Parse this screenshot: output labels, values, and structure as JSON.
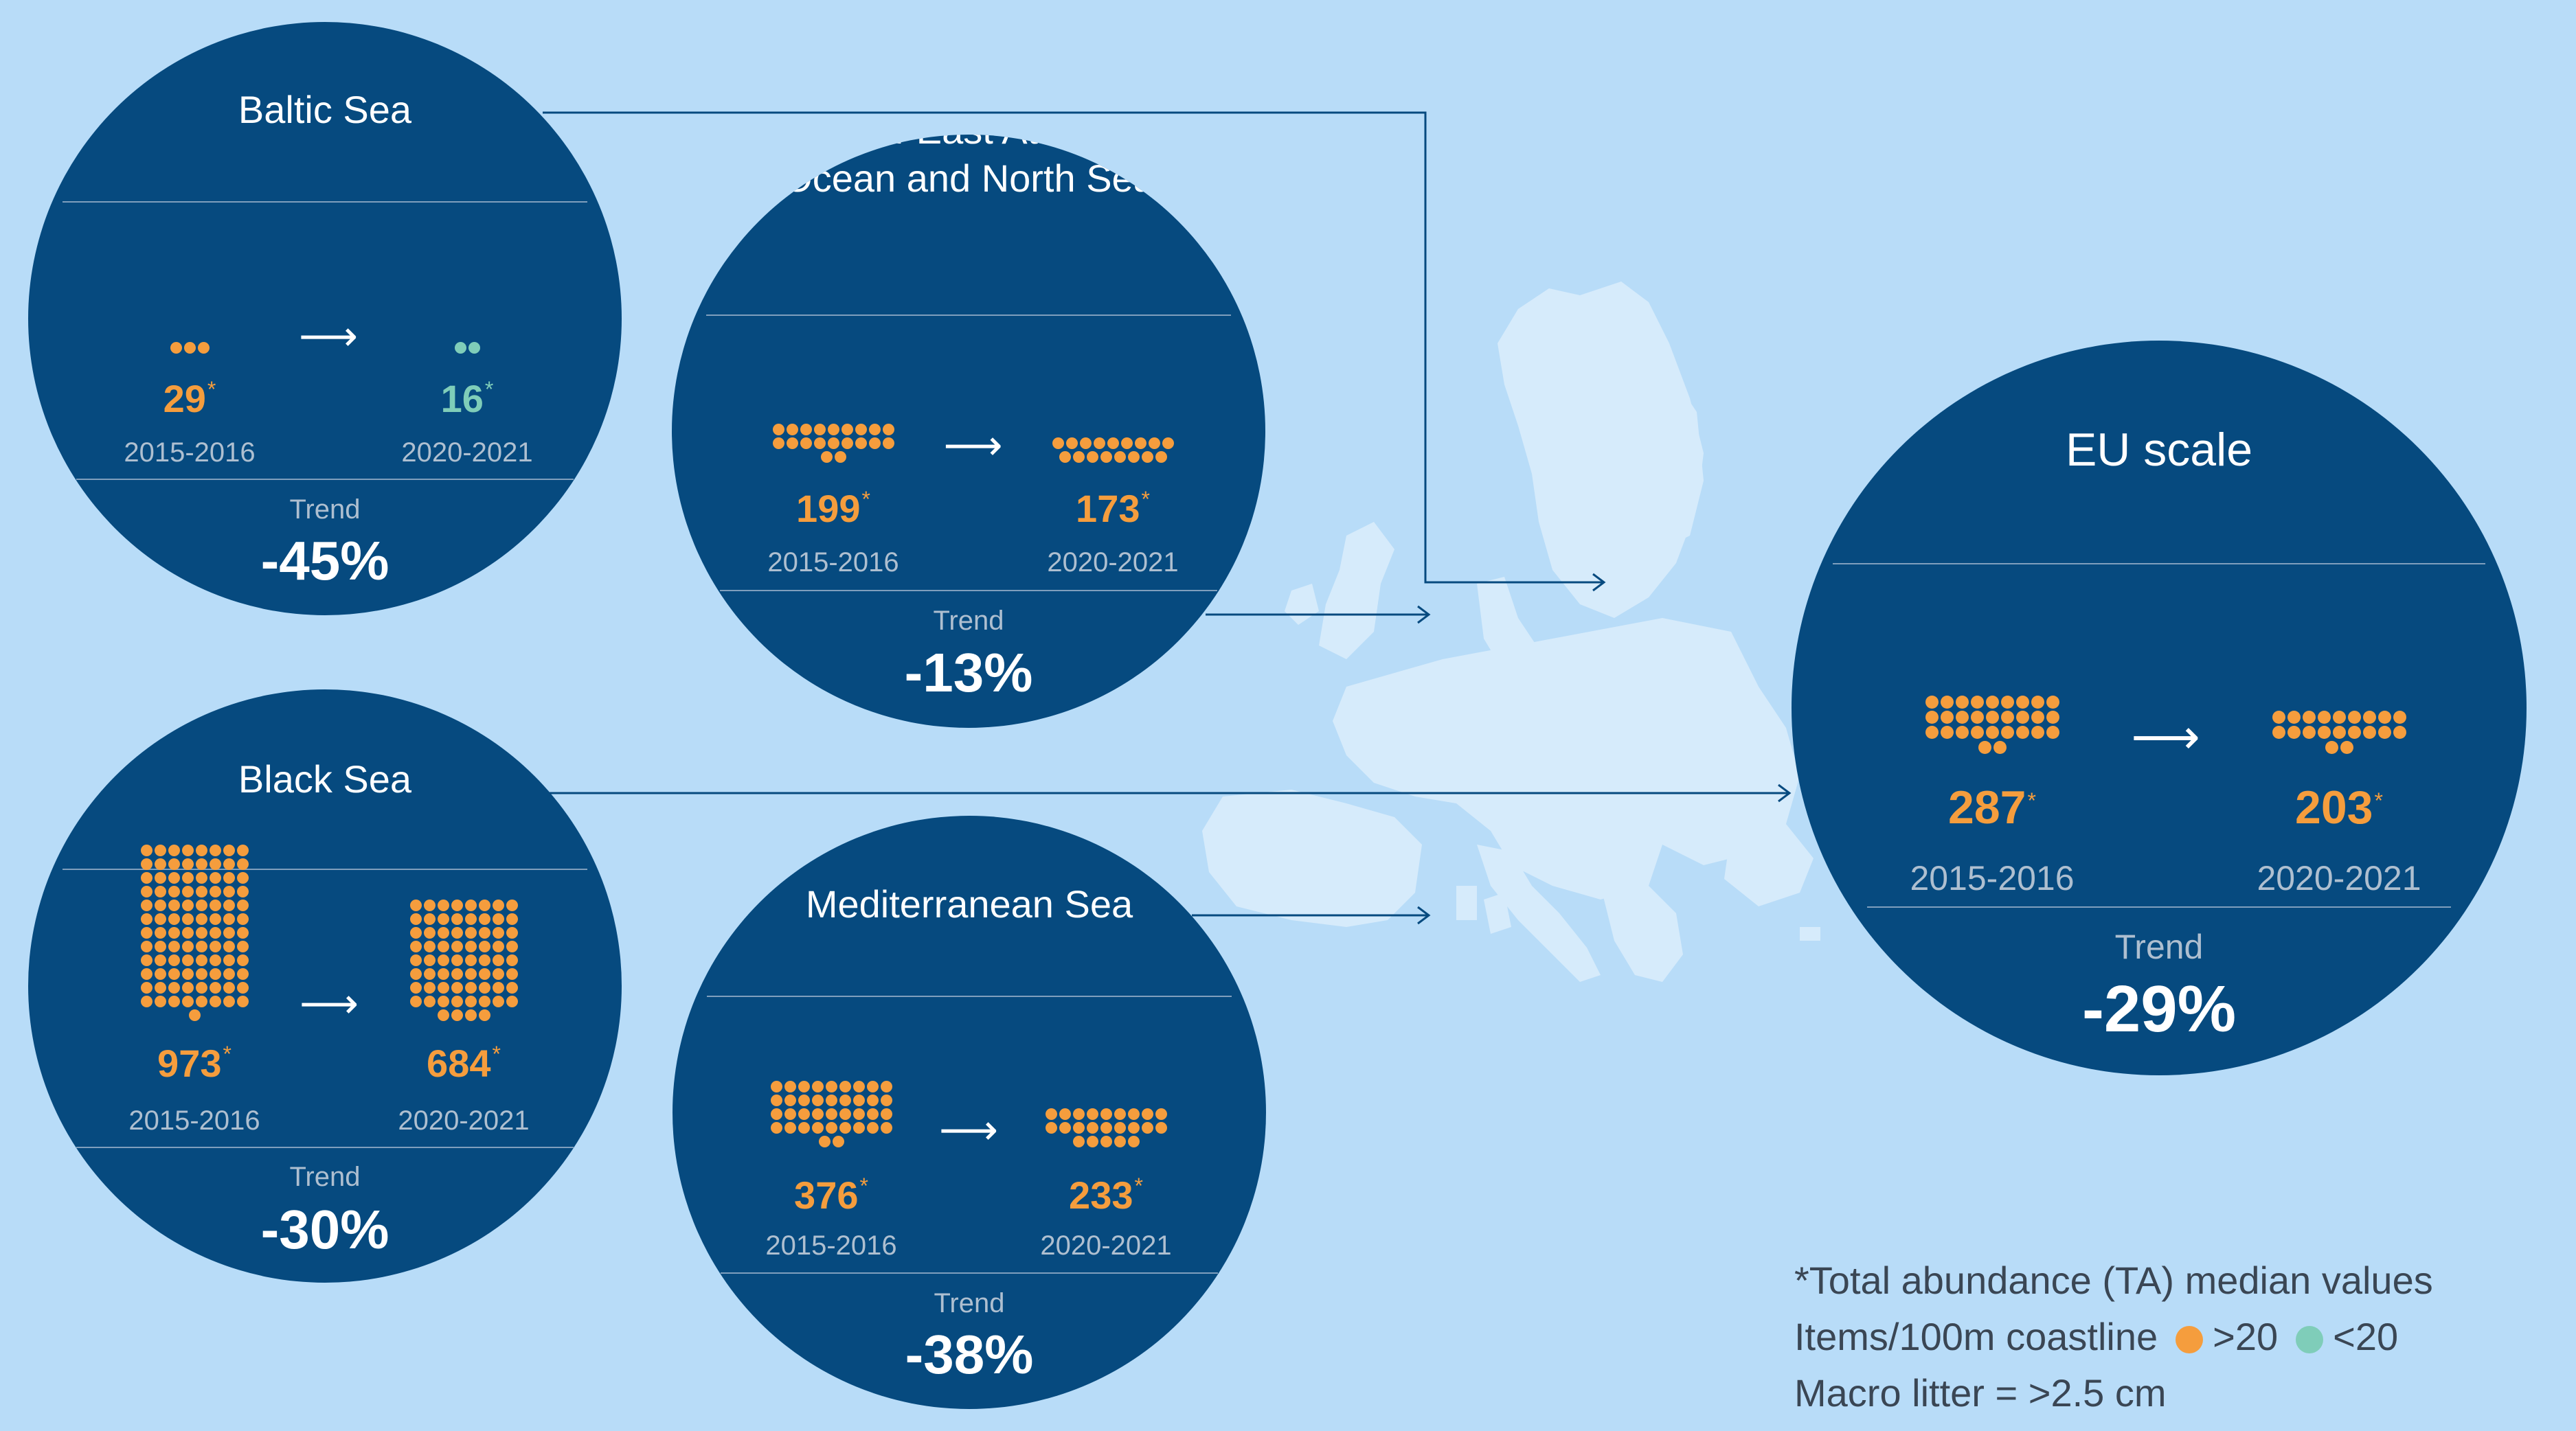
{
  "colors": {
    "background": "#b8dcf8",
    "circle": "#064a7f",
    "above_20": "#f59d3d",
    "below_20": "#7fcdb9",
    "muted_text": "#aebfd0",
    "legend_text": "#3a4654",
    "map_land": "#d6ebfb",
    "connector": "#064a7f"
  },
  "regions": [
    {
      "id": "baltic",
      "title": "Baltic Sea",
      "period_1": "2015-2016",
      "value_1": 29,
      "value_1_label": "29",
      "value_1_color": "above_20",
      "period_2": "2020-2021",
      "value_2": 16,
      "value_2_label": "16",
      "value_2_color": "below_20",
      "trend_label": "Trend",
      "trend": "-45%"
    },
    {
      "id": "northeast-atlantic",
      "title": "North-East Atlantic\nOcean and North Sea",
      "period_1": "2015-2016",
      "value_1": 199,
      "value_1_label": "199",
      "value_1_color": "above_20",
      "period_2": "2020-2021",
      "value_2": 173,
      "value_2_label": "173",
      "value_2_color": "above_20",
      "trend_label": "Trend",
      "trend": "-13%"
    },
    {
      "id": "black",
      "title": "Black Sea",
      "period_1": "2015-2016",
      "value_1": 973,
      "value_1_label": "973",
      "value_1_color": "above_20",
      "period_2": "2020-2021",
      "value_2": 684,
      "value_2_label": "684",
      "value_2_color": "above_20",
      "trend_label": "Trend",
      "trend": "-30%"
    },
    {
      "id": "mediterranean",
      "title": "Mediterranean Sea",
      "period_1": "2015-2016",
      "value_1": 376,
      "value_1_label": "376",
      "value_1_color": "above_20",
      "period_2": "2020-2021",
      "value_2": 233,
      "value_2_label": "233",
      "value_2_color": "above_20",
      "trend_label": "Trend",
      "trend": "-38%"
    },
    {
      "id": "eu",
      "title": "EU scale",
      "period_1": "2015-2016",
      "value_1": 287,
      "value_1_label": "287",
      "value_1_color": "above_20",
      "period_2": "2020-2021",
      "value_2": 203,
      "value_2_label": "203",
      "value_2_color": "above_20",
      "trend_label": "Trend",
      "trend": "-29%"
    }
  ],
  "value_marker": "*",
  "legend": {
    "line_1": "*Total abundance (TA) median values",
    "line_2_prefix": "Items/100m coastline",
    "above_label": ">20",
    "below_label": "<20",
    "line_3": "Macro litter = >2.5 cm"
  }
}
